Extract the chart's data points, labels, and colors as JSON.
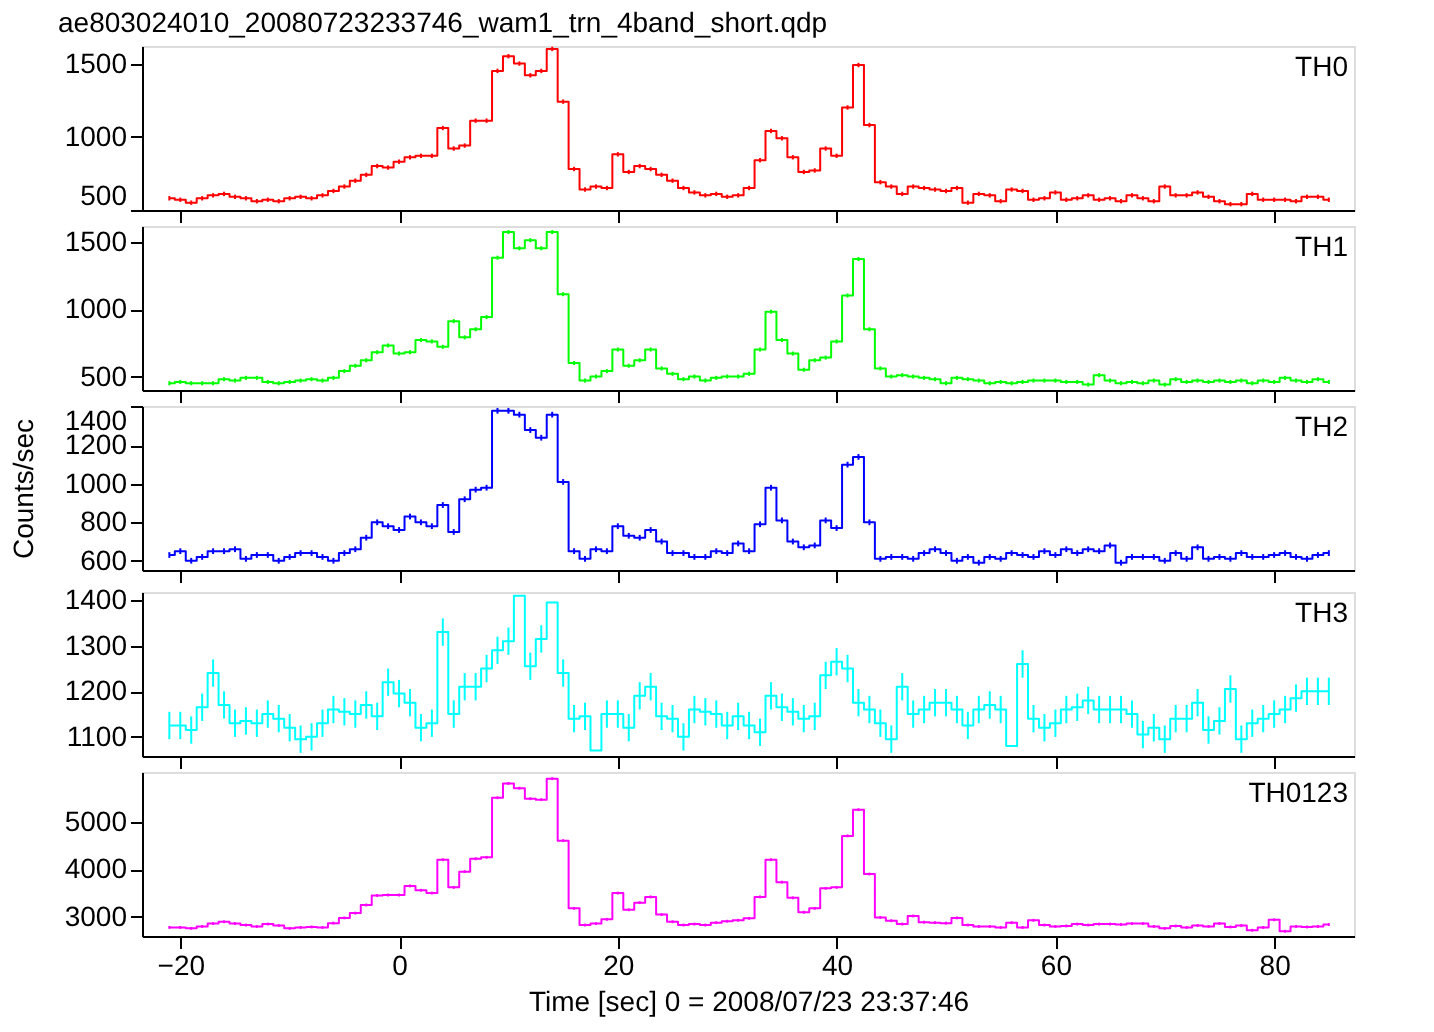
{
  "chart_data": [
    {
      "type": "step",
      "title": "ae803024010_20080723233746_wam1_trn_4band_short.qdp",
      "xlim": [
        -23.5,
        87.3
      ],
      "xticks": [
        -20,
        0,
        20,
        40,
        60,
        80
      ],
      "ylim": [
        500,
        1620
      ],
      "yticks": [
        500,
        1000,
        1500
      ],
      "tick_labels": "y",
      "grid": false,
      "x": [
        -21,
        -20,
        -19,
        -18,
        -17,
        -16,
        -15,
        -14,
        -13,
        -12,
        -11,
        -10,
        -9,
        -8,
        -7,
        -6,
        -5,
        -4,
        -3,
        -2,
        -1,
        0,
        1,
        2,
        3,
        4,
        5,
        6,
        7,
        8,
        9,
        10,
        11,
        12,
        13,
        14,
        15,
        16,
        17,
        18,
        19,
        20,
        21,
        22,
        23,
        24,
        25,
        26,
        27,
        28,
        29,
        30,
        31,
        32,
        33,
        34,
        35,
        36,
        37,
        38,
        39,
        40,
        41,
        42,
        43,
        44,
        45,
        46,
        47,
        48,
        49,
        50,
        51,
        52,
        53,
        54,
        55,
        56,
        57,
        58,
        59,
        60,
        61,
        62,
        63,
        64,
        65,
        66,
        67,
        68,
        69,
        70,
        71,
        72,
        73,
        74,
        75,
        76,
        77,
        78,
        79,
        80,
        81,
        82,
        83,
        84,
        85
      ],
      "series": [
        {
          "name": "TH0",
          "color": "#ff0000",
          "values": [
            580,
            570,
            550,
            580,
            600,
            610,
            590,
            580,
            560,
            570,
            560,
            580,
            590,
            580,
            600,
            630,
            660,
            700,
            740,
            800,
            790,
            830,
            860,
            870,
            870,
            1060,
            920,
            940,
            1110,
            1110,
            1450,
            1550,
            1500,
            1420,
            1450,
            1600,
            1240,
            780,
            640,
            660,
            650,
            880,
            760,
            800,
            780,
            740,
            700,
            650,
            620,
            600,
            610,
            590,
            600,
            650,
            840,
            1040,
            990,
            860,
            760,
            770,
            920,
            870,
            1200,
            1490,
            1080,
            690,
            660,
            610,
            660,
            650,
            640,
            630,
            650,
            550,
            610,
            600,
            560,
            640,
            630,
            570,
            580,
            620,
            570,
            580,
            600,
            570,
            580,
            560,
            600,
            580,
            560,
            660,
            600,
            600,
            620,
            590,
            560,
            540,
            540,
            610,
            570,
            570,
            570,
            560,
            590,
            590,
            570
          ],
          "errors": [
            15,
            15,
            15,
            15,
            15,
            15,
            15,
            15,
            15,
            15,
            15,
            15,
            15,
            15,
            15,
            15,
            15,
            15,
            15,
            15,
            15,
            15,
            15,
            15,
            15,
            15,
            15,
            15,
            15,
            15,
            15,
            15,
            15,
            15,
            15,
            15,
            15,
            15,
            15,
            15,
            15,
            15,
            15,
            15,
            15,
            15,
            15,
            15,
            15,
            15,
            15,
            15,
            15,
            15,
            15,
            15,
            15,
            15,
            15,
            15,
            15,
            15,
            15,
            15,
            15,
            15,
            15,
            15,
            15,
            15,
            15,
            15,
            15,
            15,
            15,
            15,
            15,
            15,
            15,
            15,
            15,
            15,
            15,
            15,
            15,
            15,
            15,
            15,
            15,
            15,
            15,
            15,
            15,
            15,
            15,
            15,
            15,
            15,
            15,
            15,
            15,
            15,
            15,
            15,
            15,
            15,
            15
          ]
        }
      ]
    },
    {
      "type": "step",
      "xlim": [
        -23.5,
        87.3
      ],
      "xticks": [
        -20,
        0,
        20,
        40,
        60,
        80
      ],
      "ylim": [
        400,
        1615
      ],
      "yticks": [
        500,
        1000,
        1500
      ],
      "tick_labels": "y",
      "grid": false,
      "x": [
        -21,
        -20,
        -19,
        -18,
        -17,
        -16,
        -15,
        -14,
        -13,
        -12,
        -11,
        -10,
        -9,
        -8,
        -7,
        -6,
        -5,
        -4,
        -3,
        -2,
        -1,
        0,
        1,
        2,
        3,
        4,
        5,
        6,
        7,
        8,
        9,
        10,
        11,
        12,
        13,
        14,
        15,
        16,
        17,
        18,
        19,
        20,
        21,
        22,
        23,
        24,
        25,
        26,
        27,
        28,
        29,
        30,
        31,
        32,
        33,
        34,
        35,
        36,
        37,
        38,
        39,
        40,
        41,
        42,
        43,
        44,
        45,
        46,
        47,
        48,
        49,
        50,
        51,
        52,
        53,
        54,
        55,
        56,
        57,
        58,
        59,
        60,
        61,
        62,
        63,
        64,
        65,
        66,
        67,
        68,
        69,
        70,
        71,
        72,
        73,
        74,
        75,
        76,
        77,
        78,
        79,
        80,
        81,
        82,
        83,
        84,
        85
      ],
      "series": [
        {
          "name": "TH1",
          "color": "#00ff00",
          "values": [
            450,
            460,
            450,
            450,
            450,
            480,
            470,
            490,
            490,
            460,
            450,
            460,
            470,
            480,
            470,
            490,
            540,
            580,
            620,
            680,
            730,
            670,
            680,
            770,
            760,
            720,
            910,
            790,
            850,
            940,
            1380,
            1570,
            1450,
            1510,
            1450,
            1570,
            1110,
            600,
            470,
            500,
            540,
            700,
            580,
            620,
            700,
            560,
            520,
            480,
            500,
            470,
            490,
            500,
            500,
            520,
            700,
            980,
            770,
            670,
            550,
            620,
            640,
            760,
            1100,
            1370,
            850,
            560,
            500,
            510,
            500,
            490,
            480,
            450,
            490,
            480,
            470,
            450,
            460,
            450,
            460,
            470,
            470,
            470,
            460,
            460,
            440,
            510,
            470,
            450,
            460,
            450,
            470,
            440,
            480,
            460,
            470,
            460,
            470,
            460,
            470,
            450,
            470,
            460,
            490,
            470,
            460,
            480,
            460
          ],
          "errors": [
            15,
            15,
            15,
            15,
            15,
            15,
            15,
            15,
            15,
            15,
            15,
            15,
            15,
            15,
            15,
            15,
            15,
            15,
            15,
            15,
            15,
            15,
            15,
            15,
            15,
            15,
            15,
            15,
            15,
            15,
            15,
            15,
            15,
            15,
            15,
            15,
            15,
            15,
            15,
            15,
            15,
            15,
            15,
            15,
            15,
            15,
            15,
            15,
            15,
            15,
            15,
            15,
            15,
            15,
            15,
            15,
            15,
            15,
            15,
            15,
            15,
            15,
            15,
            15,
            15,
            15,
            15,
            15,
            15,
            15,
            15,
            15,
            15,
            15,
            15,
            15,
            15,
            15,
            15,
            15,
            15,
            15,
            15,
            15,
            15,
            15,
            15,
            15,
            15,
            15,
            15,
            15,
            15,
            15,
            15,
            15,
            15,
            15,
            15,
            15,
            15,
            15,
            15,
            15,
            15,
            15,
            15
          ]
        }
      ]
    },
    {
      "type": "step",
      "ylabel": "Counts/sec",
      "xlim": [
        -23.5,
        87.3
      ],
      "xticks": [
        -20,
        0,
        20,
        40,
        60,
        80
      ],
      "ylim": [
        552,
        1405
      ],
      "yticks": [
        600,
        800,
        1000,
        1200,
        1400
      ],
      "tick_labels": "y",
      "grid": false,
      "x": [
        -21,
        -20,
        -19,
        -18,
        -17,
        -16,
        -15,
        -14,
        -13,
        -12,
        -11,
        -10,
        -9,
        -8,
        -7,
        -6,
        -5,
        -4,
        -3,
        -2,
        -1,
        0,
        1,
        2,
        3,
        4,
        5,
        6,
        7,
        8,
        9,
        10,
        11,
        12,
        13,
        14,
        15,
        16,
        17,
        18,
        19,
        20,
        21,
        22,
        23,
        24,
        25,
        26,
        27,
        28,
        29,
        30,
        31,
        32,
        33,
        34,
        35,
        36,
        37,
        38,
        39,
        40,
        41,
        42,
        43,
        44,
        45,
        46,
        47,
        48,
        49,
        50,
        51,
        52,
        53,
        54,
        55,
        56,
        57,
        58,
        59,
        60,
        61,
        62,
        63,
        64,
        65,
        66,
        67,
        68,
        69,
        70,
        71,
        72,
        73,
        74,
        75,
        76,
        77,
        78,
        79,
        80,
        81,
        82,
        83,
        84,
        85
      ],
      "series": [
        {
          "name": "TH2",
          "color": "#0000ff",
          "values": [
            630,
            650,
            600,
            620,
            650,
            650,
            660,
            610,
            630,
            630,
            600,
            620,
            640,
            640,
            620,
            600,
            640,
            660,
            720,
            800,
            780,
            760,
            830,
            800,
            780,
            890,
            750,
            920,
            970,
            980,
            1380,
            1380,
            1360,
            1280,
            1240,
            1360,
            1010,
            650,
            610,
            660,
            650,
            780,
            730,
            720,
            760,
            700,
            640,
            640,
            620,
            620,
            650,
            640,
            690,
            650,
            790,
            980,
            810,
            700,
            670,
            680,
            810,
            770,
            1100,
            1140,
            800,
            610,
            620,
            620,
            610,
            640,
            660,
            640,
            600,
            620,
            590,
            620,
            610,
            640,
            630,
            620,
            650,
            630,
            660,
            640,
            660,
            650,
            680,
            590,
            620,
            620,
            620,
            600,
            640,
            610,
            670,
            610,
            620,
            610,
            640,
            620,
            620,
            630,
            640,
            620,
            610,
            630,
            640
          ],
          "errors": [
            15,
            15,
            15,
            15,
            15,
            15,
            15,
            15,
            15,
            15,
            15,
            15,
            15,
            15,
            15,
            15,
            15,
            15,
            15,
            15,
            15,
            15,
            15,
            15,
            15,
            15,
            15,
            15,
            15,
            15,
            15,
            15,
            15,
            15,
            15,
            15,
            15,
            15,
            15,
            15,
            15,
            15,
            15,
            15,
            15,
            15,
            15,
            15,
            15,
            15,
            15,
            15,
            15,
            15,
            15,
            15,
            15,
            15,
            15,
            15,
            15,
            15,
            15,
            15,
            15,
            15,
            15,
            15,
            15,
            15,
            15,
            15,
            15,
            15,
            15,
            15,
            15,
            15,
            15,
            15,
            15,
            15,
            15,
            15,
            15,
            15,
            15,
            15,
            15,
            15,
            15,
            15,
            15,
            15,
            15,
            15,
            15,
            15,
            15,
            15,
            15,
            15,
            15,
            15,
            15,
            15,
            15
          ]
        }
      ]
    },
    {
      "type": "step",
      "xlim": [
        -23.5,
        87.3
      ],
      "xticks": [
        -20,
        0,
        20,
        40,
        60,
        80
      ],
      "ylim": [
        1058,
        1418
      ],
      "yticks": [
        1100,
        1200,
        1300,
        1400
      ],
      "tick_labels": "y",
      "grid": false,
      "x": [
        -21,
        -20,
        -19,
        -18,
        -17,
        -16,
        -15,
        -14,
        -13,
        -12,
        -11,
        -10,
        -9,
        -8,
        -7,
        -6,
        -5,
        -4,
        -3,
        -2,
        -1,
        0,
        1,
        2,
        3,
        4,
        5,
        6,
        7,
        8,
        9,
        10,
        11,
        12,
        13,
        14,
        15,
        16,
        17,
        18,
        19,
        20,
        21,
        22,
        23,
        24,
        25,
        26,
        27,
        28,
        29,
        30,
        31,
        32,
        33,
        34,
        35,
        36,
        37,
        38,
        39,
        40,
        41,
        42,
        43,
        44,
        45,
        46,
        47,
        48,
        49,
        50,
        51,
        52,
        53,
        54,
        55,
        56,
        57,
        58,
        59,
        60,
        61,
        62,
        63,
        64,
        65,
        66,
        67,
        68,
        69,
        70,
        71,
        72,
        73,
        74,
        75,
        76,
        77,
        78,
        79,
        80,
        81,
        82,
        83,
        84,
        85
      ],
      "series": [
        {
          "name": "TH3",
          "color": "#00ffff",
          "values": [
            1125,
            1125,
            1115,
            1165,
            1240,
            1170,
            1130,
            1135,
            1130,
            1150,
            1140,
            1120,
            1095,
            1100,
            1130,
            1160,
            1155,
            1150,
            1170,
            1145,
            1220,
            1195,
            1175,
            1120,
            1130,
            1330,
            1150,
            1210,
            1210,
            1250,
            1290,
            1310,
            1410,
            1255,
            1315,
            1395,
            1240,
            1140,
            1145,
            1070,
            1150,
            1150,
            1120,
            1190,
            1210,
            1145,
            1140,
            1100,
            1160,
            1155,
            1150,
            1125,
            1145,
            1125,
            1110,
            1190,
            1165,
            1155,
            1140,
            1145,
            1235,
            1265,
            1250,
            1175,
            1160,
            1130,
            1095,
            1210,
            1150,
            1160,
            1175,
            1175,
            1160,
            1125,
            1160,
            1170,
            1160,
            1080,
            1260,
            1140,
            1120,
            1130,
            1160,
            1165,
            1180,
            1160,
            1160,
            1160,
            1150,
            1105,
            1120,
            1095,
            1140,
            1140,
            1175,
            1115,
            1135,
            1205,
            1095,
            1130,
            1140,
            1150,
            1160,
            1185,
            1200,
            1200,
            1200
          ],
          "errors": [
            30,
            30,
            30,
            30,
            30,
            30,
            30,
            30,
            30,
            30,
            30,
            30,
            30,
            30,
            30,
            30,
            30,
            30,
            30,
            30,
            30,
            30,
            30,
            30,
            30,
            30,
            30,
            30,
            30,
            30,
            30,
            30,
            null,
            30,
            30,
            null,
            30,
            30,
            30,
            null,
            30,
            30,
            30,
            30,
            30,
            30,
            30,
            30,
            30,
            30,
            30,
            30,
            30,
            30,
            30,
            30,
            30,
            30,
            30,
            30,
            30,
            30,
            30,
            30,
            30,
            30,
            30,
            30,
            30,
            30,
            30,
            30,
            30,
            30,
            30,
            30,
            30,
            null,
            30,
            30,
            30,
            30,
            30,
            30,
            30,
            30,
            30,
            30,
            30,
            30,
            30,
            30,
            30,
            30,
            30,
            30,
            30,
            30,
            30,
            30,
            30,
            30,
            30,
            30,
            30,
            30,
            30
          ]
        }
      ]
    },
    {
      "type": "step",
      "xlabel": "Time [sec] 0 = 2008/07/23 23:37:46",
      "xlim": [
        -23.5,
        87.3
      ],
      "xticks": [
        -20,
        0,
        20,
        40,
        60,
        80
      ],
      "ylim": [
        2600,
        6040
      ],
      "yticks": [
        3000,
        4000,
        5000
      ],
      "grid": false,
      "x": [
        -21,
        -20,
        -19,
        -18,
        -17,
        -16,
        -15,
        -14,
        -13,
        -12,
        -11,
        -10,
        -9,
        -8,
        -7,
        -6,
        -5,
        -4,
        -3,
        -2,
        -1,
        0,
        1,
        2,
        3,
        4,
        5,
        6,
        7,
        8,
        9,
        10,
        11,
        12,
        13,
        14,
        15,
        16,
        17,
        18,
        19,
        20,
        21,
        22,
        23,
        24,
        25,
        26,
        27,
        28,
        29,
        30,
        31,
        32,
        33,
        34,
        35,
        36,
        37,
        38,
        39,
        40,
        41,
        42,
        43,
        44,
        45,
        46,
        47,
        48,
        49,
        50,
        51,
        52,
        53,
        54,
        55,
        56,
        57,
        58,
        59,
        60,
        61,
        62,
        63,
        64,
        65,
        66,
        67,
        68,
        69,
        70,
        71,
        72,
        73,
        74,
        75,
        76,
        77,
        78,
        79,
        80,
        81,
        82,
        83,
        84,
        85
      ],
      "series": [
        {
          "name": "TH0123",
          "color": "#ff00ff",
          "values": [
            2780,
            2780,
            2760,
            2800,
            2860,
            2900,
            2860,
            2830,
            2800,
            2850,
            2820,
            2760,
            2780,
            2790,
            2780,
            2870,
            2980,
            3080,
            3250,
            3450,
            3460,
            3460,
            3650,
            3560,
            3500,
            4200,
            3620,
            3950,
            4220,
            4250,
            5500,
            5800,
            5700,
            5480,
            5460,
            5900,
            4600,
            3180,
            2830,
            2860,
            2950,
            3500,
            3150,
            3300,
            3420,
            3050,
            2900,
            2830,
            2850,
            2830,
            2880,
            2910,
            2930,
            2970,
            3420,
            4200,
            3730,
            3400,
            3100,
            3180,
            3600,
            3620,
            4700,
            5250,
            3900,
            2990,
            2920,
            2850,
            3020,
            2890,
            2880,
            2870,
            2980,
            2830,
            2800,
            2800,
            2780,
            2880,
            2780,
            2930,
            2830,
            2800,
            2810,
            2850,
            2830,
            2850,
            2850,
            2840,
            2860,
            2860,
            2800,
            2760,
            2810,
            2780,
            2820,
            2800,
            2860,
            2790,
            2820,
            2720,
            2780,
            2940,
            2700,
            2800,
            2790,
            2800,
            2840
          ],
          "errors": [
            30,
            30,
            30,
            30,
            30,
            30,
            30,
            30,
            30,
            30,
            30,
            30,
            30,
            30,
            30,
            30,
            30,
            30,
            30,
            30,
            30,
            30,
            30,
            30,
            30,
            30,
            30,
            30,
            30,
            30,
            30,
            30,
            30,
            30,
            30,
            30,
            30,
            30,
            30,
            30,
            30,
            30,
            30,
            30,
            30,
            30,
            30,
            30,
            30,
            30,
            30,
            30,
            30,
            30,
            30,
            30,
            30,
            30,
            30,
            30,
            30,
            30,
            30,
            30,
            30,
            30,
            30,
            30,
            30,
            30,
            30,
            30,
            30,
            30,
            30,
            30,
            30,
            30,
            30,
            30,
            30,
            30,
            30,
            30,
            30,
            30,
            30,
            30,
            30,
            30,
            30,
            30,
            30,
            30,
            30,
            30,
            30,
            30,
            30,
            30,
            30,
            30,
            30,
            30,
            30,
            30,
            30
          ]
        }
      ]
    }
  ]
}
